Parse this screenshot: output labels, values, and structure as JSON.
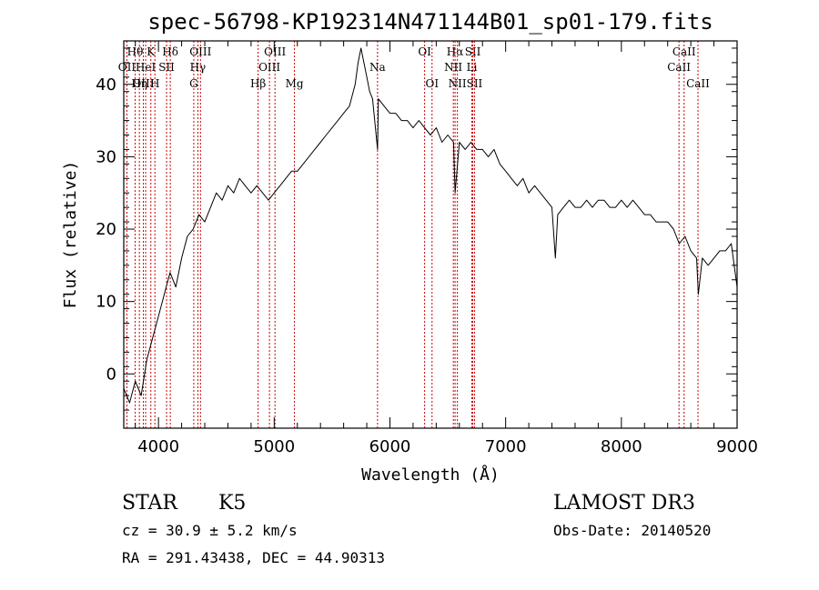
{
  "chart_data": {
    "type": "line",
    "title": "spec-56798-KP192314N471144B01_sp01-179.fits",
    "xlabel": "Wavelength (Å)",
    "ylabel": "Flux (relative)",
    "xlim": [
      3700,
      9000
    ],
    "ylim": [
      -7.5,
      46
    ],
    "x_ticks": [
      4000,
      5000,
      6000,
      7000,
      8000,
      9000
    ],
    "x_tick_labels": [
      "4000",
      "5000",
      "6000",
      "7000",
      "8000",
      "9000"
    ],
    "y_ticks": [
      0,
      10,
      20,
      30,
      40
    ],
    "y_tick_labels": [
      "0",
      "10",
      "20",
      "30",
      "40"
    ],
    "grid": false,
    "series": [
      {
        "x": [
          3700,
          3750,
          3800,
          3850,
          3900,
          3950,
          4000,
          4050,
          4100,
          4150,
          4200,
          4250,
          4300,
          4350,
          4400,
          4450,
          4500,
          4550,
          4600,
          4650,
          4700,
          4750,
          4800,
          4850,
          4900,
          4950,
          5000,
          5050,
          5100,
          5150,
          5200,
          5250,
          5300,
          5350,
          5400,
          5450,
          5500,
          5550,
          5600,
          5650,
          5700,
          5725,
          5750,
          5775,
          5800,
          5825,
          5850,
          5893,
          5900,
          5950,
          6000,
          6050,
          6100,
          6150,
          6200,
          6250,
          6300,
          6350,
          6400,
          6450,
          6500,
          6550,
          6563,
          6600,
          6650,
          6700,
          6750,
          6800,
          6850,
          6900,
          6950,
          7000,
          7050,
          7100,
          7150,
          7200,
          7250,
          7300,
          7350,
          7400,
          7430,
          7450,
          7500,
          7550,
          7600,
          7650,
          7700,
          7750,
          7800,
          7850,
          7900,
          7950,
          8000,
          8050,
          8100,
          8150,
          8200,
          8250,
          8300,
          8350,
          8400,
          8450,
          8500,
          8550,
          8600,
          8650,
          8665,
          8700,
          8750,
          8800,
          8850,
          8900,
          8950,
          9000
        ],
        "y": [
          -2,
          -4,
          -1,
          -3,
          2,
          5,
          8,
          11,
          14,
          12,
          16,
          19,
          20,
          22,
          21,
          23,
          25,
          24,
          26,
          25,
          27,
          26,
          25,
          26,
          25,
          24,
          25,
          26,
          27,
          28,
          28,
          29,
          30,
          31,
          32,
          33,
          34,
          35,
          36,
          37,
          40,
          43,
          45,
          43,
          41,
          39,
          38,
          31,
          38,
          37,
          36,
          36,
          35,
          35,
          34,
          35,
          34,
          33,
          34,
          32,
          33,
          32,
          25,
          32,
          31,
          32,
          31,
          31,
          30,
          31,
          29,
          28,
          27,
          26,
          27,
          25,
          26,
          25,
          24,
          23,
          16,
          22,
          23,
          24,
          23,
          23,
          24,
          23,
          24,
          24,
          23,
          23,
          24,
          23,
          24,
          23,
          22,
          22,
          21,
          21,
          21,
          20,
          18,
          19,
          17,
          16,
          11,
          16,
          15,
          16,
          17,
          17,
          18,
          12
        ]
      }
    ],
    "spectral_lines": [
      {
        "name": "Hθ",
        "wavelength": 3798,
        "row": 0
      },
      {
        "name": "OII",
        "wavelength": 3727,
        "row": 1
      },
      {
        "name": "OIII",
        "wavelength": 3869,
        "row": 2
      },
      {
        "name": "Hη",
        "wavelength": 3835,
        "row": 2
      },
      {
        "name": "K",
        "wavelength": 3934,
        "row": 0
      },
      {
        "name": "HeI",
        "wavelength": 3889,
        "row": 1
      },
      {
        "name": "H",
        "wavelength": 3969,
        "row": 2
      },
      {
        "name": "SII",
        "wavelength": 4070,
        "row": 1
      },
      {
        "name": "Hδ",
        "wavelength": 4102,
        "row": 0
      },
      {
        "name": "OIII",
        "wavelength": 4363,
        "row": 0
      },
      {
        "name": "Hγ",
        "wavelength": 4340,
        "row": 1
      },
      {
        "name": "G",
        "wavelength": 4305,
        "row": 2
      },
      {
        "name": "Hβ",
        "wavelength": 4861,
        "row": 2
      },
      {
        "name": "OIII",
        "wavelength": 5007,
        "row": 0
      },
      {
        "name": "OIII",
        "wavelength": 4959,
        "row": 1
      },
      {
        "name": "Mg",
        "wavelength": 5175,
        "row": 2
      },
      {
        "name": "Na",
        "wavelength": 5893,
        "row": 1
      },
      {
        "name": "OI",
        "wavelength": 6300,
        "row": 0
      },
      {
        "name": "OI",
        "wavelength": 6364,
        "row": 2
      },
      {
        "name": "Hα",
        "wavelength": 6563,
        "row": 0
      },
      {
        "name": "NII",
        "wavelength": 6548,
        "row": 1
      },
      {
        "name": "NII",
        "wavelength": 6583,
        "row": 2
      },
      {
        "name": "SII",
        "wavelength": 6716,
        "row": 0
      },
      {
        "name": "Li",
        "wavelength": 6708,
        "row": 1
      },
      {
        "name": "SII",
        "wavelength": 6731,
        "row": 2
      },
      {
        "name": "CaII",
        "wavelength": 8542,
        "row": 0
      },
      {
        "name": "CaII",
        "wavelength": 8498,
        "row": 1
      },
      {
        "name": "CaII",
        "wavelength": 8662,
        "row": 2
      }
    ]
  },
  "info": {
    "object_class": "STAR",
    "subclass": "K5",
    "survey": "LAMOST DR3",
    "redshift": "cz = 30.9 ± 5.2 km/s",
    "obs_date": "Obs-Date: 20140520",
    "coords": "RA = 291.43438, DEC =  44.90313"
  },
  "colors": {
    "axis": "#000000",
    "spectrum": "#000000",
    "line_markers": "#cc0000"
  }
}
